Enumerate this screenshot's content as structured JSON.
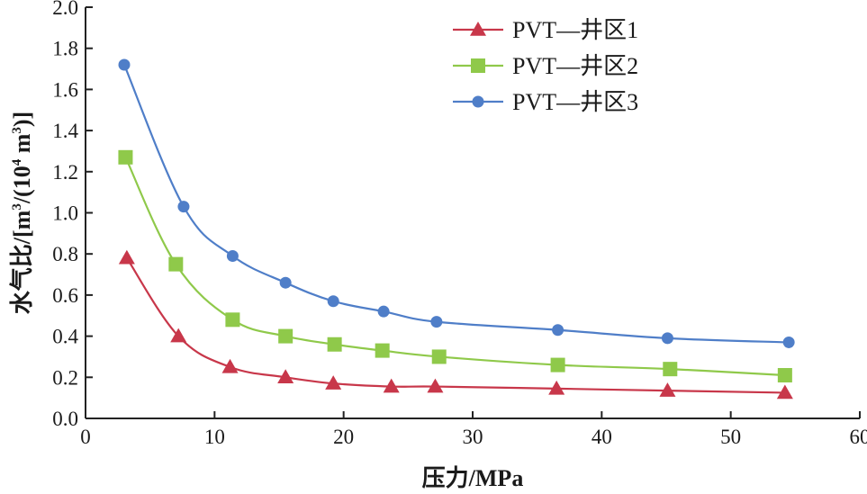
{
  "chart_data": {
    "type": "line",
    "title": "",
    "xlabel": "压力/MPa",
    "ylabel": "水气比/[m³/(10⁴ m³)]",
    "ylabel_parts": {
      "main": "水气比/[m",
      "sup1": "3",
      "mid": "/(10",
      "sup2": "4",
      "end": " m",
      "sup3": "3",
      "close": ")]"
    },
    "xlim": [
      0,
      60
    ],
    "ylim": [
      0.0,
      2.0
    ],
    "xticks": [
      "0",
      "10",
      "20",
      "30",
      "40",
      "50",
      "60"
    ],
    "yticks": [
      "0.0",
      "0.2",
      "0.4",
      "0.6",
      "0.8",
      "1.0",
      "1.2",
      "1.4",
      "1.6",
      "1.8",
      "2.0"
    ],
    "grid": false,
    "legend_position": "top-right",
    "series": [
      {
        "name": "PVT—井区1",
        "color": "#c8374a",
        "marker": "triangle",
        "x": [
          3.2,
          7.2,
          11.2,
          15.5,
          19.2,
          23.7,
          27.1,
          36.5,
          45.1,
          54.2
        ],
        "y": [
          0.78,
          0.4,
          0.25,
          0.2,
          0.17,
          0.155,
          0.155,
          0.145,
          0.135,
          0.125
        ]
      },
      {
        "name": "PVT—井区2",
        "color": "#8fc94a",
        "marker": "square",
        "x": [
          3.1,
          7.0,
          11.4,
          15.5,
          19.3,
          23.0,
          27.4,
          36.6,
          45.3,
          54.2
        ],
        "y": [
          1.27,
          0.75,
          0.48,
          0.4,
          0.36,
          0.33,
          0.3,
          0.26,
          0.24,
          0.21
        ]
      },
      {
        "name": "PVT—井区3",
        "color": "#4f7ec8",
        "marker": "circle",
        "x": [
          3.0,
          7.6,
          11.4,
          15.5,
          19.2,
          23.1,
          27.2,
          36.6,
          45.1,
          54.5
        ],
        "y": [
          1.72,
          1.03,
          0.79,
          0.66,
          0.57,
          0.52,
          0.47,
          0.43,
          0.39,
          0.37
        ]
      }
    ]
  }
}
